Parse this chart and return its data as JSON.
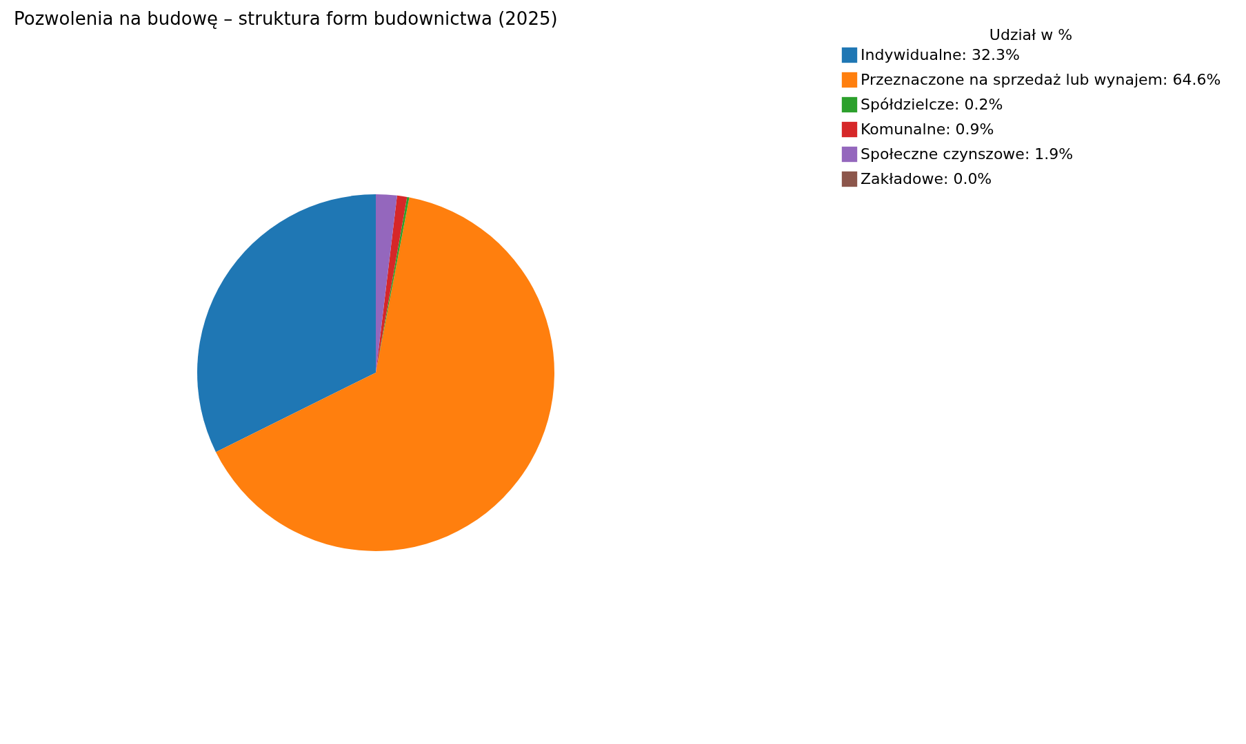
{
  "chart_data": {
    "type": "pie",
    "title": "Pozwolenia na budowę – struktura form budownictwa (2025)",
    "legend_title": "Udział w %",
    "legend": "right",
    "categories": [
      "Indywidualne: 32.3%",
      "Przeznaczone na sprzedaż lub wynajem: 64.6%",
      "Spółdzielcze: 0.2%",
      "Komunalne: 0.9%",
      "Społeczne czynszowe: 1.9%",
      "Zakładowe: 0.0%"
    ],
    "values": [
      32.3,
      64.6,
      0.2,
      0.9,
      1.9,
      0.0
    ],
    "colors": [
      "#1f77b4",
      "#ff7f0e",
      "#2ca02c",
      "#d62728",
      "#9467bd",
      "#8c564b"
    ]
  }
}
